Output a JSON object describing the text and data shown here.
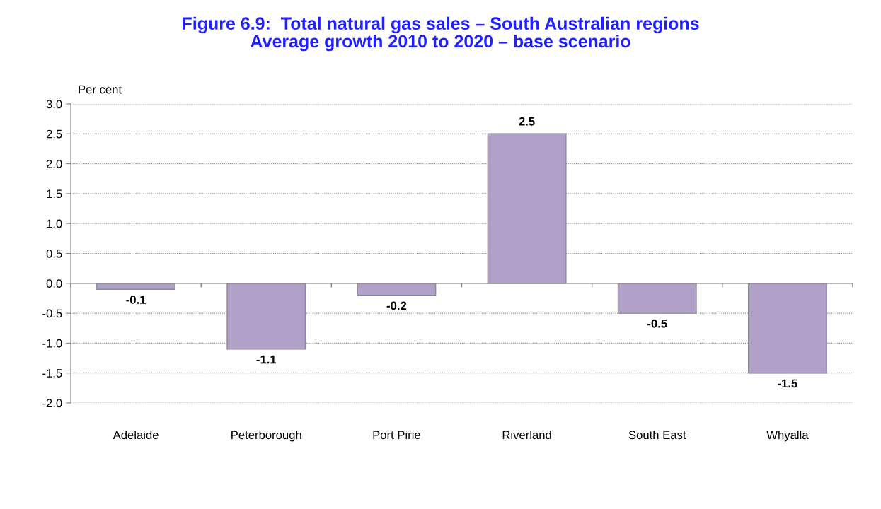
{
  "chart_data": {
    "type": "bar",
    "title": "Figure 6.9:  Total natural gas sales – South Australian regions\nAverage growth 2010 to 2020 – base scenario",
    "ylabel": "Per cent",
    "categories": [
      "Adelaide",
      "Peterborough",
      "Port Pirie",
      "Riverland",
      "South East",
      "Whyalla"
    ],
    "values": [
      -0.1,
      -1.1,
      -0.2,
      2.5,
      -0.5,
      -1.5
    ],
    "color": "#b1a0c7",
    "ylim": [
      -2.0,
      3.0
    ],
    "yticks": [
      {
        "value": -2.0,
        "label": "-2.0"
      },
      {
        "value": -1.5,
        "label": "-1.5"
      },
      {
        "value": -1.0,
        "label": "-1.0"
      },
      {
        "value": -0.5,
        "label": "-0.5"
      },
      {
        "value": 0.0,
        "label": "0.0"
      },
      {
        "value": 0.5,
        "label": "0.5"
      },
      {
        "value": 1.0,
        "label": "1.0"
      },
      {
        "value": 1.5,
        "label": "1.5"
      },
      {
        "value": 2.0,
        "label": "2.0"
      },
      {
        "value": 2.5,
        "label": "2.5"
      },
      {
        "value": 3.0,
        "label": "3.0"
      }
    ],
    "grid": "y",
    "data_labels": true,
    "legend": false
  }
}
